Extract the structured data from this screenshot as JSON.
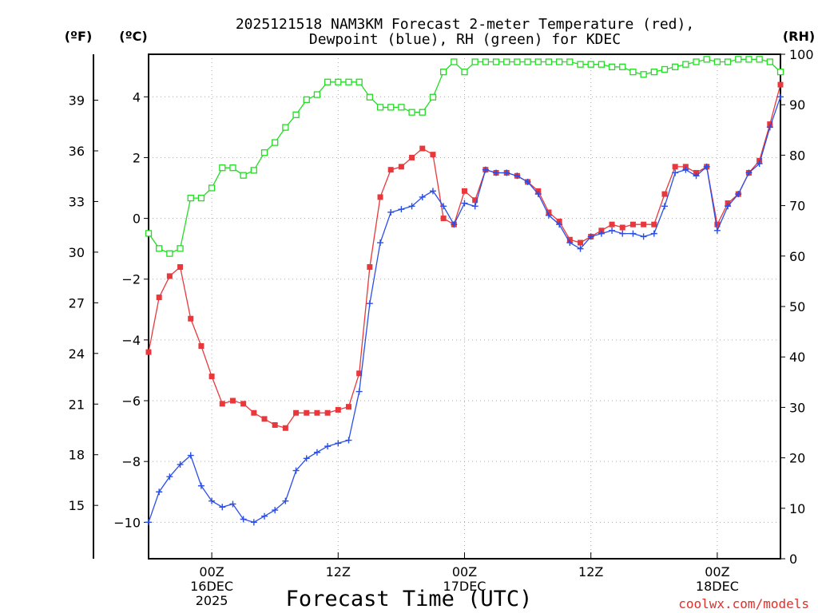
{
  "chart_data": {
    "type": "line",
    "title_line1": "2025121518 NAM3KM Forecast 2-meter Temperature (red),",
    "title_line2": "Dewpoint (blue), RH (green) for KDEC",
    "xlabel": "Forecast Time (UTC)",
    "credit": "coolwx.com/models",
    "unit_f": "(ºF)",
    "unit_c": "(ºC)",
    "unit_rh": "(RH)",
    "x": {
      "min": -6,
      "max": 54
    },
    "left_axis_c": {
      "min": -11.2,
      "max": 5.4,
      "ticks": [
        -10,
        -8,
        -6,
        -4,
        -2,
        0,
        2,
        4
      ]
    },
    "left_axis_f": {
      "ticks": [
        15,
        18,
        21,
        24,
        27,
        30,
        33,
        36,
        39
      ]
    },
    "right_axis_rh": {
      "min": 0,
      "max": 100,
      "ticks": [
        0,
        10,
        20,
        30,
        40,
        50,
        60,
        70,
        80,
        90,
        100
      ]
    },
    "x_ticks": [
      {
        "hour": 0,
        "lines": [
          "00Z",
          "16DEC",
          "2025"
        ]
      },
      {
        "hour": 12,
        "lines": [
          "12Z"
        ]
      },
      {
        "hour": 24,
        "lines": [
          "00Z",
          "17DEC"
        ]
      },
      {
        "hour": 36,
        "lines": [
          "12Z"
        ]
      },
      {
        "hour": 48,
        "lines": [
          "00Z",
          "18DEC"
        ]
      }
    ],
    "series": [
      {
        "name": "Temperature (°C)",
        "axis": "c",
        "color": "#e8383c",
        "marker": "filled-square",
        "values": [
          -4.4,
          -2.6,
          -1.9,
          -1.6,
          -3.3,
          -4.2,
          -5.2,
          -6.1,
          -6.0,
          -6.1,
          -6.4,
          -6.6,
          -6.8,
          -6.9,
          -6.4,
          -6.4,
          -6.4,
          -6.4,
          -6.3,
          -6.2,
          -5.1,
          -1.6,
          0.7,
          1.6,
          1.7,
          2.0,
          2.3,
          2.1,
          0.0,
          -0.2,
          0.9,
          0.6,
          1.6,
          1.5,
          1.5,
          1.4,
          1.2,
          0.9,
          0.2,
          -0.1,
          -0.7,
          -0.8,
          -0.6,
          -0.4,
          -0.2,
          -0.3,
          -0.2,
          -0.2,
          -0.2,
          0.8,
          1.7,
          1.7,
          1.5,
          1.7,
          -0.2,
          0.5,
          0.8,
          1.5,
          1.9,
          3.1,
          4.4
        ]
      },
      {
        "name": "Dewpoint (°C)",
        "axis": "c",
        "color": "#2a4ee8",
        "marker": "plus",
        "values": [
          -10.0,
          -9.0,
          -8.5,
          -8.1,
          -7.8,
          -8.8,
          -9.3,
          -9.5,
          -9.4,
          -9.9,
          -10.0,
          -9.8,
          -9.6,
          -9.3,
          -8.3,
          -7.9,
          -7.7,
          -7.5,
          -7.4,
          -7.3,
          -5.7,
          -2.8,
          -0.8,
          0.2,
          0.3,
          0.4,
          0.7,
          0.9,
          0.4,
          -0.2,
          0.5,
          0.4,
          1.6,
          1.5,
          1.5,
          1.4,
          1.2,
          0.8,
          0.1,
          -0.2,
          -0.8,
          -1.0,
          -0.6,
          -0.5,
          -0.4,
          -0.5,
          -0.5,
          -0.6,
          -0.5,
          0.4,
          1.5,
          1.6,
          1.4,
          1.7,
          -0.4,
          0.4,
          0.8,
          1.5,
          1.8,
          3.0,
          4.0
        ]
      },
      {
        "name": "RH (%)",
        "axis": "rh",
        "color": "#22dd22",
        "marker": "open-square",
        "values": [
          64.5,
          61.5,
          60.5,
          61.5,
          71.5,
          71.5,
          73.5,
          77.5,
          77.5,
          76.0,
          77.0,
          80.5,
          82.5,
          85.5,
          88.0,
          91.0,
          92.0,
          94.5,
          94.5,
          94.5,
          94.5,
          91.5,
          89.5,
          89.5,
          89.5,
          88.5,
          88.5,
          91.5,
          96.5,
          98.5,
          96.5,
          98.5,
          98.5,
          98.5,
          98.5,
          98.5,
          98.5,
          98.5,
          98.5,
          98.5,
          98.5,
          98.0,
          98.0,
          98.0,
          97.5,
          97.5,
          96.5,
          96.0,
          96.5,
          97.0,
          97.5,
          98.0,
          98.5,
          99.0,
          98.5,
          98.5,
          99.0,
          99.0,
          99.0,
          98.5,
          96.5
        ]
      }
    ]
  }
}
